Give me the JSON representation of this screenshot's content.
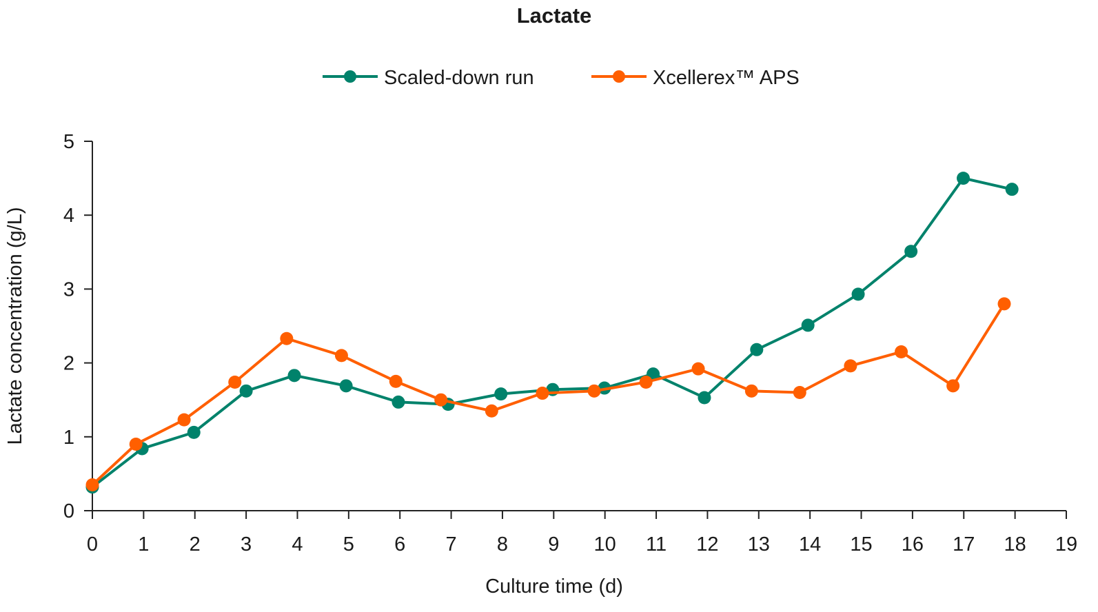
{
  "chart_data": {
    "type": "line",
    "title": "Lactate",
    "xlabel": "Culture time (d)",
    "ylabel": "Lactate concentration (g/L)",
    "xlim": [
      0,
      19
    ],
    "ylim": [
      0,
      5
    ],
    "xticks": [
      0,
      1,
      2,
      3,
      4,
      5,
      6,
      7,
      8,
      9,
      10,
      11,
      12,
      13,
      14,
      15,
      16,
      17,
      18,
      19
    ],
    "yticks": [
      0,
      1,
      2,
      3,
      4,
      5
    ],
    "grid": false,
    "legend_position": "top-center",
    "series": [
      {
        "name": "Scaled-down run",
        "color": "#00826B",
        "x": [
          0,
          0.97,
          1.98,
          3.0,
          3.94,
          4.95,
          5.97,
          6.94,
          7.97,
          8.98,
          9.99,
          10.94,
          11.94,
          12.96,
          13.96,
          14.94,
          15.97,
          16.99,
          17.94
        ],
        "y": [
          0.32,
          0.84,
          1.06,
          1.62,
          1.83,
          1.69,
          1.47,
          1.44,
          1.58,
          1.64,
          1.66,
          1.85,
          1.53,
          2.18,
          2.51,
          2.93,
          3.51,
          4.5,
          4.35
        ]
      },
      {
        "name": "Xcellerex™ APS",
        "color": "#FF5F00",
        "x": [
          0,
          0.85,
          1.79,
          2.78,
          3.79,
          4.86,
          5.92,
          6.8,
          7.79,
          8.78,
          9.79,
          10.8,
          11.82,
          12.86,
          13.8,
          14.79,
          15.78,
          16.79,
          17.79
        ],
        "y": [
          0.35,
          0.9,
          1.23,
          1.74,
          2.33,
          2.1,
          1.75,
          1.5,
          1.35,
          1.59,
          1.62,
          1.74,
          1.92,
          1.62,
          1.6,
          1.96,
          2.15,
          1.69,
          2.8
        ]
      }
    ]
  }
}
